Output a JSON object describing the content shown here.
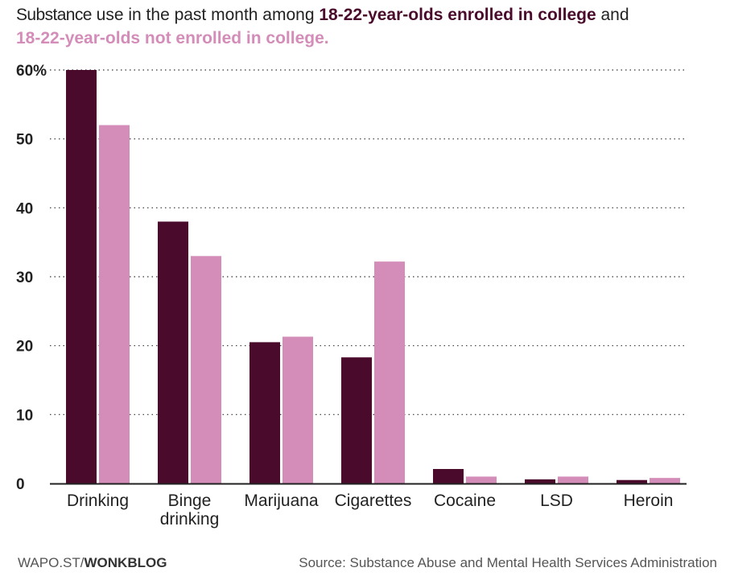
{
  "title": {
    "prefix": "Substance",
    "text": " use in the past month among ",
    "college_label": "18-22-year-olds enrolled in college",
    "and": " and",
    "not_college_label": "18-22-year-olds not enrolled in college."
  },
  "colors": {
    "college": "#4a0a2b",
    "not_college": "#d48cb8",
    "grid": "#333333"
  },
  "chart_data": {
    "type": "bar",
    "title": "Substance use in the past month among 18-22-year-olds enrolled in college and 18-22-year-olds not enrolled in college.",
    "categories": [
      "Drinking",
      "Binge drinking",
      "Marijuana",
      "Cigarettes",
      "Cocaine",
      "LSD",
      "Heroin"
    ],
    "category_lines": [
      [
        "Drinking"
      ],
      [
        "Binge",
        "drinking"
      ],
      [
        "Marijuana"
      ],
      [
        "Cigarettes"
      ],
      [
        "Cocaine"
      ],
      [
        "LSD"
      ],
      [
        "Heroin"
      ]
    ],
    "series": [
      {
        "name": "18-22-year-olds enrolled in college",
        "values": [
          60,
          38,
          20.5,
          18.3,
          2.1,
          0.6,
          0.5
        ]
      },
      {
        "name": "18-22-year-olds not enrolled in college",
        "values": [
          52,
          33,
          21.3,
          32.2,
          1.0,
          1.0,
          0.8
        ]
      }
    ],
    "yticks": [
      0,
      10,
      20,
      30,
      40,
      50,
      60
    ],
    "ytick_labels": [
      "0",
      "10",
      "20",
      "30",
      "40",
      "50",
      "60%"
    ],
    "ylim": [
      0,
      60
    ],
    "xlabel": "",
    "ylabel": "",
    "grid": true
  },
  "footer": {
    "source_prefix": "WAPO.ST/",
    "source_bold": "WONKBLOG",
    "credit": "Source: Substance Abuse and Mental Health Services Administration"
  }
}
